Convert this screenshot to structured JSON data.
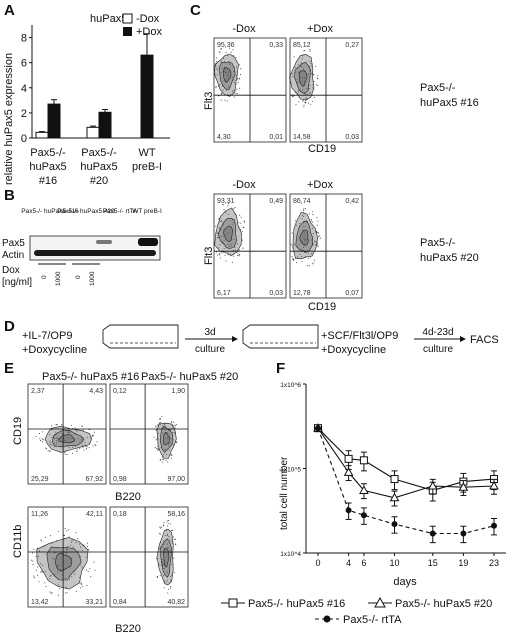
{
  "panelA": {
    "label": "A",
    "chart_data": {
      "type": "bar",
      "title": "huPax5",
      "ylabel": "relative huPax5 expression",
      "ylim": [
        0,
        9
      ],
      "yticks": [
        0,
        2,
        4,
        6,
        8
      ],
      "categories": [
        {
          "line1": "Pax5-/-",
          "line2": "huPax5",
          "line3": "#16"
        },
        {
          "line1": "Pax5-/-",
          "line2": "huPax5",
          "line3": "#20"
        },
        {
          "line1": "WT",
          "line2": "preB-I",
          "line3": ""
        }
      ],
      "series": [
        {
          "name": "-Dox",
          "color": "#ffffff",
          "values": [
            0.45,
            0.85,
            null
          ],
          "errors": [
            0.06,
            0.1,
            null
          ]
        },
        {
          "name": "+Dox",
          "color": "#111111",
          "values": [
            2.7,
            2.05,
            6.6
          ],
          "errors": [
            0.35,
            0.22,
            1.7
          ]
        }
      ],
      "legend": "top-right"
    }
  },
  "panelB": {
    "label": "B",
    "lanes": [
      "Pax5-/- huPax5 #16",
      "Pax5-/- huPax5 #20",
      "Pax5-/- rtTA",
      "WT preB-I"
    ],
    "rows": [
      "Pax5",
      "Actin"
    ],
    "dox_label": "Dox",
    "dox_unit": "[ng/ml]",
    "dox_values": [
      "0",
      "1000",
      "0",
      "1000"
    ]
  },
  "panelC": {
    "label": "C",
    "xlabel": "CD19",
    "ylabel": "Flt3",
    "plots": [
      {
        "col": "-Dox",
        "q": [
          "95,36",
          "0,33",
          "4,30",
          "0,01"
        ]
      },
      {
        "col": "+Dox",
        "q": [
          "85,12",
          "0,27",
          "14,58",
          "0,03"
        ]
      },
      {
        "col": "-Dox",
        "q": [
          "93,31",
          "0,49",
          "6,17",
          "0,03"
        ]
      },
      {
        "col": "+Dox",
        "q": [
          "86,74",
          "0,42",
          "12,78",
          "0,07"
        ]
      }
    ],
    "line_labels": [
      {
        "a": "Pax5-/-",
        "b": "huPax5 #16"
      },
      {
        "a": "Pax5-/-",
        "b": "huPax5 #20"
      }
    ]
  },
  "panelD": {
    "label": "D",
    "step1": [
      "+IL-7/OP9",
      "+Doxycycline"
    ],
    "arrow1": [
      "3d",
      "culture"
    ],
    "step2": [
      "+SCF/Flt3l/OP9",
      "+Doxycycline"
    ],
    "arrow2": [
      "4d-23d",
      "culture"
    ],
    "end": "FACS"
  },
  "panelE": {
    "label": "E",
    "titles": [
      "Pax5-/- huPax5 #16",
      "Pax5-/- huPax5 #20"
    ],
    "xlabel": "B220",
    "ylabels": [
      "CD19",
      "CD11b"
    ],
    "plots": [
      {
        "q": [
          "2,37",
          "4,43",
          "25,29",
          "67,92"
        ]
      },
      {
        "q": [
          "0,12",
          "1,90",
          "0,98",
          "97,00"
        ]
      },
      {
        "q": [
          "11,26",
          "42,11",
          "13,42",
          "33,21"
        ]
      },
      {
        "q": [
          "0,18",
          "58,16",
          "0,84",
          "40,82"
        ]
      }
    ]
  },
  "panelF": {
    "label": "F",
    "chart_data": {
      "type": "line",
      "xlabel": "days",
      "ylabel": "total cell number",
      "x": [
        0,
        4,
        6,
        10,
        15,
        19,
        23
      ],
      "yscale": "log",
      "ylim": [
        10000,
        1000000
      ],
      "yticks": [
        "1x10^4",
        "1x10^5",
        "1x10^6"
      ],
      "series": [
        {
          "name": "Pax5-/- huPax5 #16",
          "marker": "square",
          "dash": false,
          "values": [
            300000,
            130000,
            125000,
            75000,
            55000,
            70000,
            75000
          ]
        },
        {
          "name": "Pax5-/- huPax5 #20",
          "marker": "triangle",
          "dash": false,
          "values": [
            300000,
            90000,
            55000,
            45000,
            62000,
            60000,
            62000
          ]
        },
        {
          "name": "Pax5-/- rtTA",
          "marker": "circle",
          "dash": true,
          "values": [
            300000,
            32000,
            28000,
            22000,
            17000,
            17000,
            21000
          ]
        }
      ]
    }
  }
}
